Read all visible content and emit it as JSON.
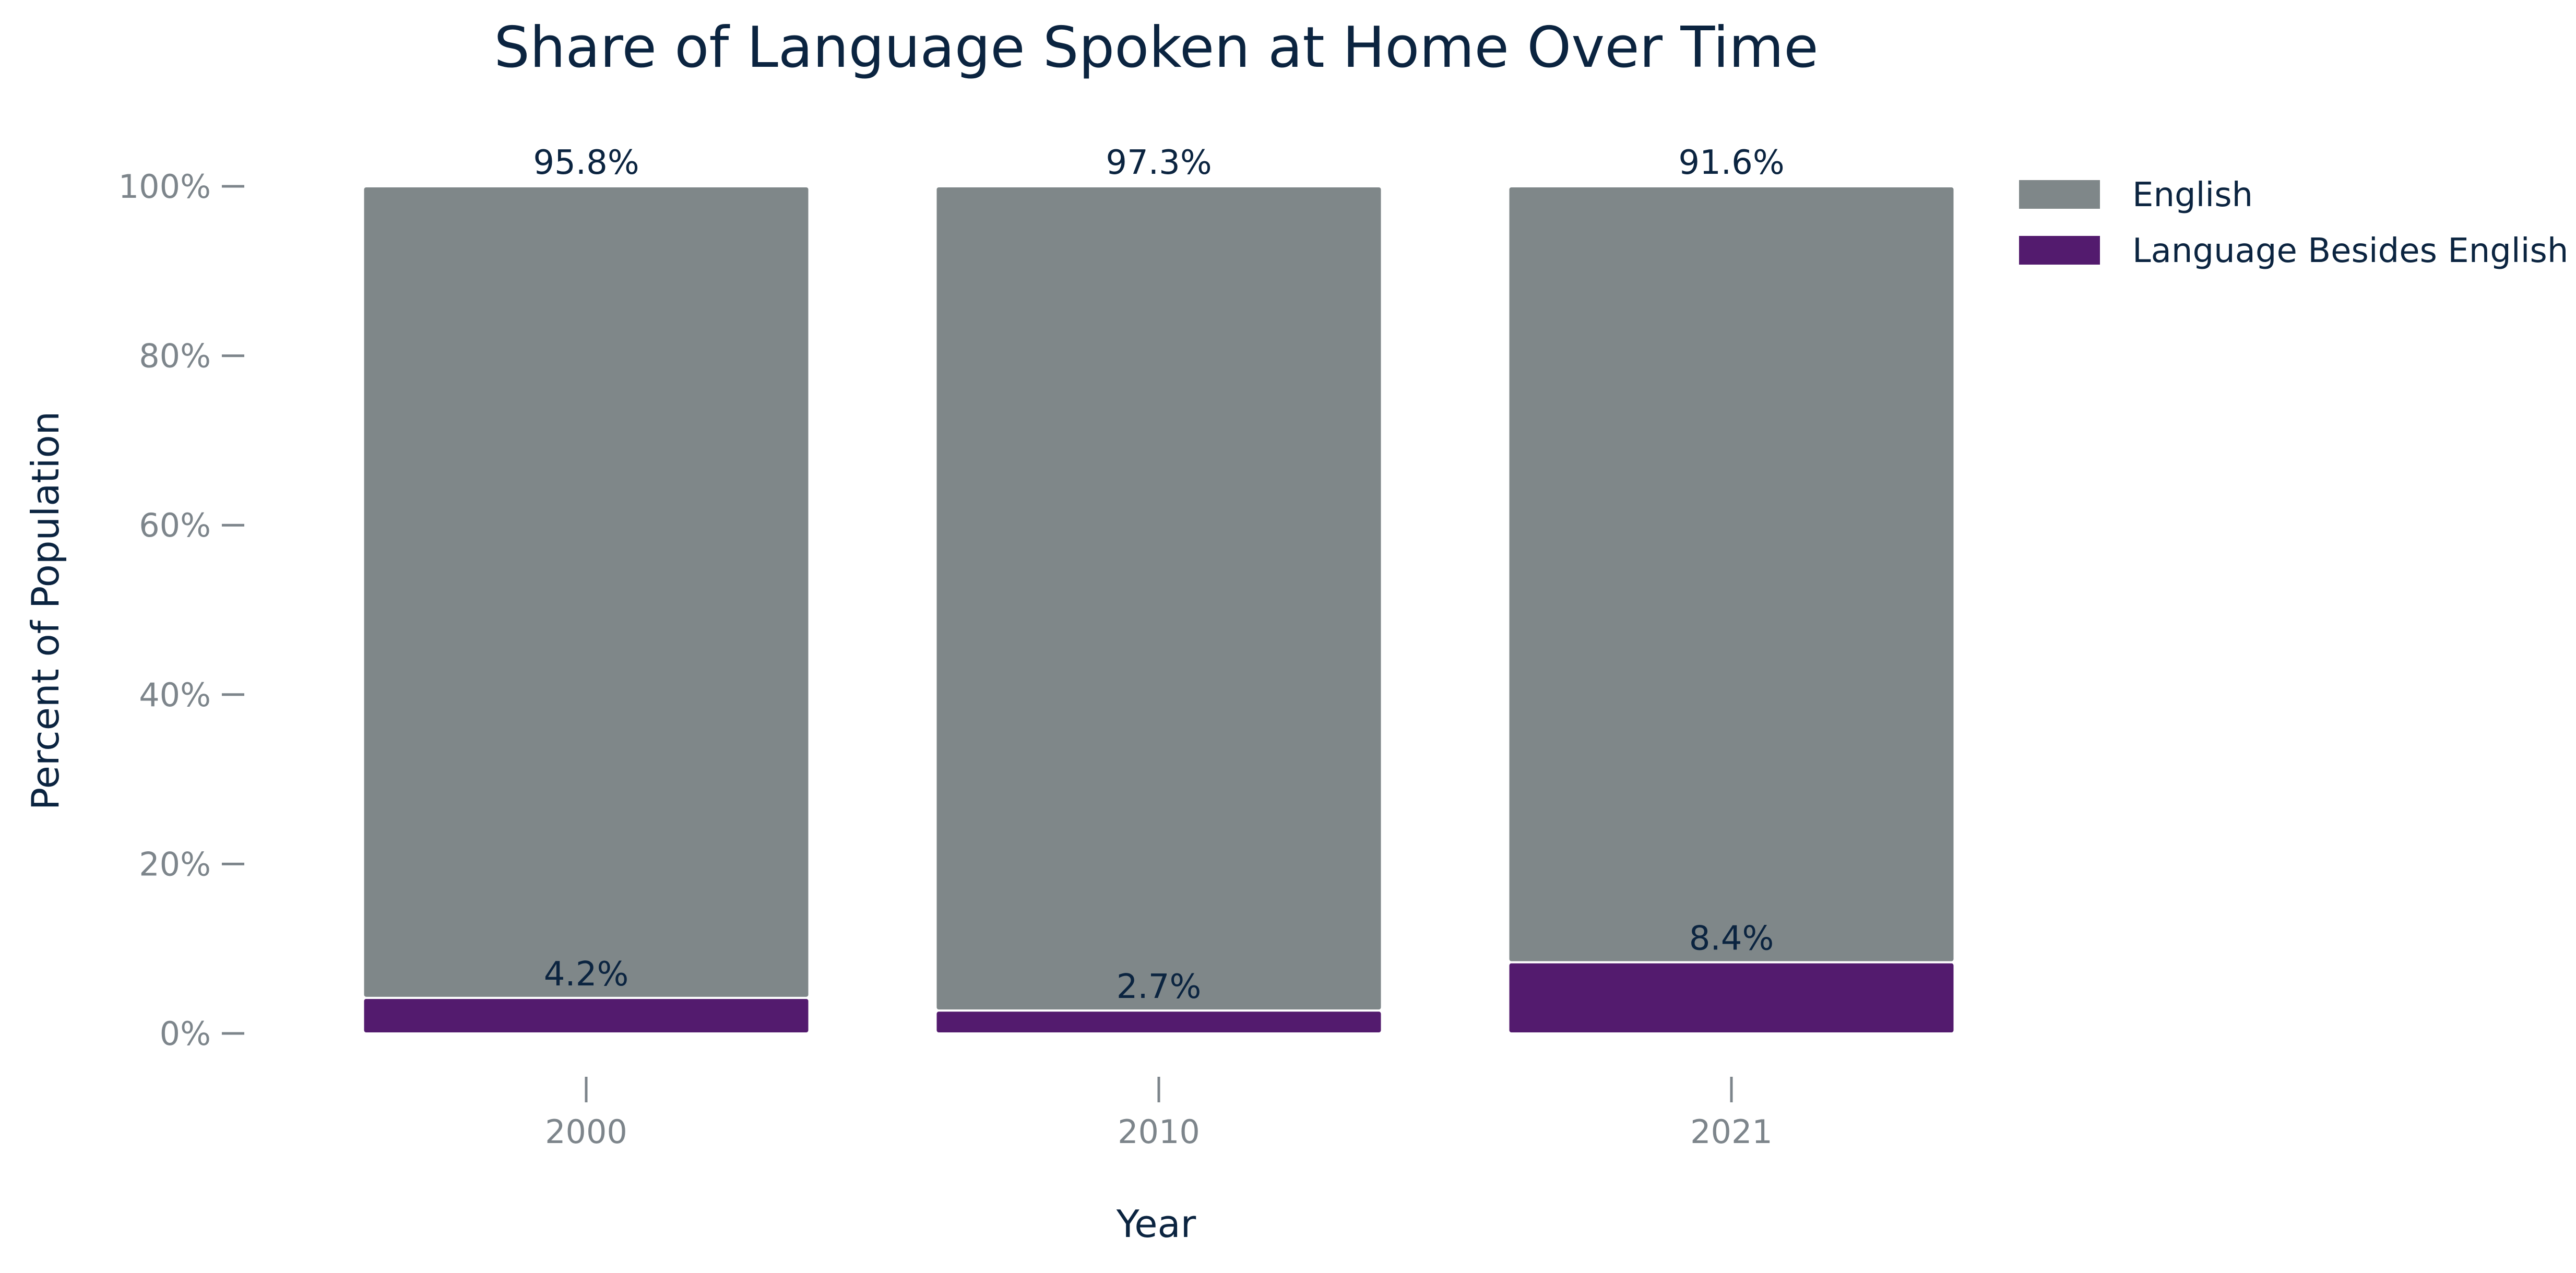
{
  "chart_data": {
    "type": "bar",
    "stacked": true,
    "title": "Share of Language Spoken at Home Over Time",
    "xlabel": "Year",
    "ylabel": "Percent of Population",
    "categories": [
      "2000",
      "2010",
      "2021"
    ],
    "ylim": [
      0,
      100
    ],
    "yticks": [
      {
        "value": 0,
        "label": "0%"
      },
      {
        "value": 20,
        "label": "20%"
      },
      {
        "value": 40,
        "label": "40%"
      },
      {
        "value": 60,
        "label": "60%"
      },
      {
        "value": 80,
        "label": "80%"
      },
      {
        "value": 100,
        "label": "100%"
      }
    ],
    "series": [
      {
        "name": "Language Besides English",
        "color": "#531b6e",
        "values": [
          4.2,
          2.7,
          8.4
        ],
        "labels": [
          "4.2%",
          "2.7%",
          "8.4%"
        ]
      },
      {
        "name": "English",
        "color": "#7f8789",
        "values": [
          95.8,
          97.3,
          91.6
        ],
        "labels": [
          "95.8%",
          "97.3%",
          "91.6%"
        ]
      }
    ],
    "legend": {
      "position": "top-right",
      "entries": [
        {
          "label": "English",
          "color": "#7f8789"
        },
        {
          "label": "Language Besides English",
          "color": "#531b6e"
        }
      ]
    },
    "grid": false
  }
}
